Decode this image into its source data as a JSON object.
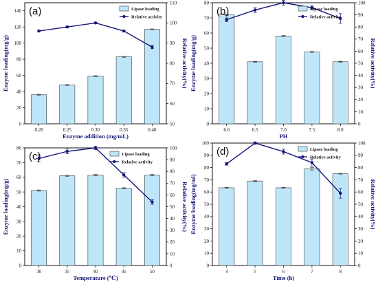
{
  "colors": {
    "bar_fill": "#bfe6f8",
    "bar_stroke": "#3a3a3a",
    "line": "#14147a",
    "left_axis_label": "#14147a",
    "right_axis_label": "#14147a",
    "text": "#111111"
  },
  "chart_data": [
    {
      "type": "bar+line",
      "panel_label": "(a)",
      "categories": [
        "0.20",
        "0.25",
        "0.30",
        "0.35",
        "0.40"
      ],
      "xlabel": "Enzyme addition (mg/mL)",
      "ylabel": "Enzyme loading(mg/g)",
      "y2label": "Relative activity(%)",
      "ylim": [
        0,
        150
      ],
      "yticks": [
        0,
        20,
        40,
        60,
        80,
        100,
        120,
        140
      ],
      "y2lim": [
        50,
        110
      ],
      "y2ticks": [
        50,
        60,
        70,
        80,
        90,
        100,
        110
      ],
      "series": [
        {
          "name": "Lipase loading",
          "kind": "bar",
          "axis": "left",
          "values": [
            36,
            48,
            59,
            83,
            117
          ],
          "errors": [
            0.6,
            0.6,
            0.6,
            0.6,
            0.6
          ]
        },
        {
          "name": "Relative activity",
          "kind": "line",
          "axis": "right",
          "values": [
            96,
            98,
            100,
            96,
            88
          ],
          "errors": [
            0.4,
            0.4,
            0.4,
            0.4,
            0.8
          ]
        }
      ],
      "legend": "top-left"
    },
    {
      "type": "bar+line",
      "panel_label": "(b)",
      "categories": [
        "6.0",
        "6.5",
        "7.0",
        "7.5",
        "8.0"
      ],
      "xlabel": "PH",
      "ylabel": "Enzyme loading(mg/g)",
      "y2label": "Relative activity(%)",
      "ylim": [
        0,
        80
      ],
      "yticks": [
        0,
        10,
        20,
        30,
        40,
        50,
        60,
        70,
        80
      ],
      "y2lim": [
        0,
        100
      ],
      "y2ticks": [
        0,
        10,
        20,
        30,
        40,
        50,
        60,
        70,
        80,
        90,
        100
      ],
      "series": [
        {
          "name": "Lipase loading",
          "kind": "bar",
          "axis": "left",
          "values": [
            72,
            41,
            58,
            47.5,
            41
          ],
          "errors": [
            0.5,
            0.3,
            0.4,
            0.3,
            0.3
          ]
        },
        {
          "name": "Relative activity",
          "kind": "line",
          "axis": "right",
          "values": [
            86,
            94,
            100,
            96,
            87
          ],
          "errors": [
            1.5,
            2,
            2,
            1.5,
            4
          ]
        }
      ],
      "legend": "top-right"
    },
    {
      "type": "bar+line",
      "panel_label": "(c)",
      "categories": [
        "30",
        "35",
        "40",
        "45",
        "50"
      ],
      "xlabel": "Temperature (℃)",
      "ylabel": "Enzyme loading(mg/g)",
      "y2label": "Relative activity(%)",
      "ylim": [
        0,
        80
      ],
      "yticks": [
        0,
        10,
        20,
        30,
        40,
        50,
        60,
        70,
        80
      ],
      "y2lim": [
        0,
        100
      ],
      "y2ticks": [
        0,
        10,
        20,
        30,
        40,
        50,
        60,
        70,
        80,
        90,
        100
      ],
      "series": [
        {
          "name": "Lipase loading",
          "kind": "bar",
          "axis": "left",
          "values": [
            51,
            61,
            61.5,
            52.5,
            61.5
          ],
          "errors": [
            0.4,
            0.4,
            0.4,
            0.4,
            0.4
          ]
        },
        {
          "name": "Relative activity",
          "kind": "line",
          "axis": "right",
          "values": [
            91,
            97,
            100,
            77,
            54
          ],
          "errors": [
            3,
            2,
            1.5,
            2,
            2
          ]
        }
      ],
      "legend": "top-right"
    },
    {
      "type": "bar+line",
      "panel_label": "(d)",
      "categories": [
        "4",
        "5",
        "6",
        "7",
        "8"
      ],
      "xlabel": "Time (h)",
      "ylabel": "Enzyme loading(mg/ml)",
      "y2label": "Relative activity(%)",
      "ylim": [
        0,
        100
      ],
      "yticks": [
        0,
        10,
        20,
        30,
        40,
        50,
        60,
        70,
        80,
        90,
        100
      ],
      "y2lim": [
        0,
        100
      ],
      "y2ticks": [
        0,
        10,
        20,
        30,
        40,
        50,
        60,
        70,
        80,
        90,
        100
      ],
      "series": [
        {
          "name": "Lipase loading",
          "kind": "bar",
          "axis": "left",
          "values": [
            63.5,
            69,
            63.5,
            79,
            75
          ],
          "errors": [
            0.4,
            0.4,
            0.4,
            1,
            0.4
          ]
        },
        {
          "name": "Relative activity",
          "kind": "line",
          "axis": "right",
          "values": [
            83,
            100,
            93,
            84,
            59
          ],
          "errors": [
            1,
            1,
            2,
            3,
            4
          ]
        }
      ],
      "legend": "top-right"
    }
  ]
}
